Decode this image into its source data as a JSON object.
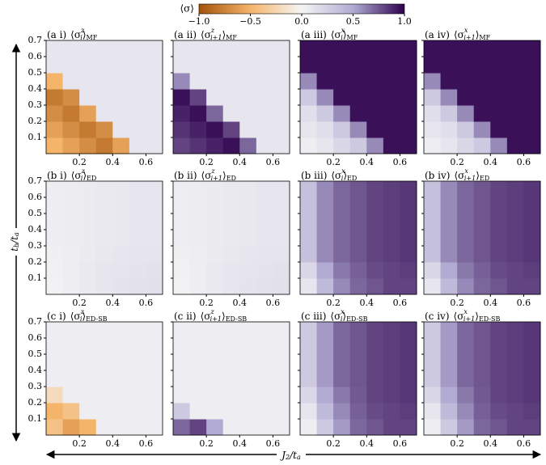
{
  "chart_data": {
    "type": "heatmap",
    "colorbar": {
      "label": "⟨σ⟩",
      "lim": [
        -1,
        1
      ],
      "ticks": [
        {
          "value": -1,
          "label": "−1.0"
        },
        {
          "value": -0.5,
          "label": "−0.5"
        },
        {
          "value": 0,
          "label": "0.0"
        },
        {
          "value": 0.5,
          "label": "0.5"
        },
        {
          "value": 1,
          "label": "1.0"
        }
      ],
      "colors": [
        "#a4520a",
        "#f4b56a",
        "#f5f5f5",
        "#b1abd3",
        "#2d004b"
      ]
    },
    "xlabel": [
      "J",
      "2",
      "/t",
      "a"
    ],
    "ylabel": [
      "t",
      "b",
      "/t",
      "a"
    ],
    "xlim": [
      0,
      0.7
    ],
    "ylim": [
      0,
      0.7
    ],
    "xticks": [
      0.2,
      0.4,
      0.6
    ],
    "yticks": [
      0.1,
      0.2,
      0.3,
      0.4,
      0.5,
      0.6,
      0.7
    ],
    "x": [
      0.05,
      0.15,
      0.25,
      0.35,
      0.45,
      0.55,
      0.65
    ],
    "y": [
      0.05,
      0.15,
      0.25,
      0.35,
      0.45,
      0.55,
      0.65
    ],
    "panels": [
      {
        "label": "(a i)",
        "sub": "i",
        "sup": "z",
        "ens": "MF",
        "z": [
          [
            -0.5,
            -0.6,
            -0.7,
            -0.8,
            -0.6,
            0.1,
            0.1
          ],
          [
            -0.6,
            -0.7,
            -0.8,
            -0.7,
            0.1,
            0.1,
            0.1
          ],
          [
            -0.7,
            -0.8,
            -0.6,
            0.1,
            0.1,
            0.1,
            0.1
          ],
          [
            -0.8,
            -0.7,
            0.1,
            0.1,
            0.1,
            0.1,
            0.1
          ],
          [
            -0.5,
            0.1,
            0.1,
            0.1,
            0.1,
            0.1,
            0.1
          ],
          [
            0.1,
            0.1,
            0.1,
            0.1,
            0.1,
            0.1,
            0.1
          ],
          [
            0.1,
            0.1,
            0.1,
            0.1,
            0.1,
            0.1,
            0.1
          ]
        ]
      },
      {
        "label": "(a ii)",
        "sub": "i+1",
        "sup": "z",
        "ens": "MF",
        "z": [
          [
            0.8,
            0.85,
            0.9,
            0.95,
            0.7,
            0.1,
            0.1
          ],
          [
            0.85,
            0.9,
            0.95,
            0.8,
            0.1,
            0.1,
            0.1
          ],
          [
            0.9,
            0.95,
            0.7,
            0.1,
            0.1,
            0.1,
            0.1
          ],
          [
            0.95,
            0.8,
            0.1,
            0.1,
            0.1,
            0.1,
            0.1
          ],
          [
            0.6,
            0.1,
            0.1,
            0.1,
            0.1,
            0.1,
            0.1
          ],
          [
            0.1,
            0.1,
            0.1,
            0.1,
            0.1,
            0.1,
            0.1
          ],
          [
            0.1,
            0.1,
            0.1,
            0.1,
            0.1,
            0.1,
            0.1
          ]
        ]
      },
      {
        "label": "(a iii)",
        "sub": "i",
        "sup": "x",
        "ens": "MF",
        "z": [
          [
            0.05,
            0.1,
            0.2,
            0.3,
            0.6,
            0.95,
            0.95
          ],
          [
            0.1,
            0.15,
            0.3,
            0.6,
            0.95,
            0.95,
            0.95
          ],
          [
            0.15,
            0.3,
            0.6,
            0.95,
            0.95,
            0.95,
            0.95
          ],
          [
            0.3,
            0.6,
            0.95,
            0.95,
            0.95,
            0.95,
            0.95
          ],
          [
            0.6,
            0.95,
            0.95,
            0.95,
            0.95,
            0.95,
            0.95
          ],
          [
            0.95,
            0.95,
            0.95,
            0.95,
            0.95,
            0.95,
            0.95
          ],
          [
            0.95,
            0.95,
            0.95,
            0.95,
            0.95,
            0.95,
            0.95
          ]
        ]
      },
      {
        "label": "(a iv)",
        "sub": "i+1",
        "sup": "x",
        "ens": "MF",
        "z": [
          [
            0.05,
            0.1,
            0.2,
            0.3,
            0.6,
            0.95,
            0.95
          ],
          [
            0.1,
            0.15,
            0.3,
            0.6,
            0.95,
            0.95,
            0.95
          ],
          [
            0.15,
            0.3,
            0.6,
            0.95,
            0.95,
            0.95,
            0.95
          ],
          [
            0.3,
            0.6,
            0.95,
            0.95,
            0.95,
            0.95,
            0.95
          ],
          [
            0.6,
            0.95,
            0.95,
            0.95,
            0.95,
            0.95,
            0.95
          ],
          [
            0.95,
            0.95,
            0.95,
            0.95,
            0.95,
            0.95,
            0.95
          ],
          [
            0.95,
            0.95,
            0.95,
            0.95,
            0.95,
            0.95,
            0.95
          ]
        ]
      },
      {
        "label": "(b i)",
        "sub": "i",
        "sup": "z",
        "ens": "ED",
        "z": [
          [
            0.02,
            0.05,
            0.08,
            0.1,
            0.12,
            0.13,
            0.14
          ],
          [
            0.03,
            0.05,
            0.08,
            0.1,
            0.11,
            0.12,
            0.13
          ],
          [
            0.04,
            0.05,
            0.07,
            0.09,
            0.1,
            0.11,
            0.11
          ],
          [
            0.05,
            0.06,
            0.07,
            0.08,
            0.09,
            0.1,
            0.1
          ],
          [
            0.05,
            0.06,
            0.07,
            0.08,
            0.09,
            0.1,
            0.1
          ],
          [
            0.05,
            0.06,
            0.07,
            0.08,
            0.09,
            0.1,
            0.1
          ],
          [
            0.05,
            0.06,
            0.07,
            0.08,
            0.09,
            0.1,
            0.1
          ]
        ]
      },
      {
        "label": "(b ii)",
        "sub": "i+1",
        "sup": "z",
        "ens": "ED",
        "z": [
          [
            0.02,
            0.05,
            0.08,
            0.1,
            0.12,
            0.13,
            0.14
          ],
          [
            0.03,
            0.05,
            0.08,
            0.1,
            0.11,
            0.12,
            0.13
          ],
          [
            0.04,
            0.05,
            0.07,
            0.09,
            0.1,
            0.11,
            0.11
          ],
          [
            0.05,
            0.06,
            0.07,
            0.08,
            0.09,
            0.1,
            0.1
          ],
          [
            0.05,
            0.06,
            0.07,
            0.08,
            0.09,
            0.1,
            0.1
          ],
          [
            0.05,
            0.06,
            0.07,
            0.08,
            0.09,
            0.1,
            0.1
          ],
          [
            0.05,
            0.06,
            0.07,
            0.08,
            0.09,
            0.1,
            0.1
          ]
        ]
      },
      {
        "label": "(b iii)",
        "sub": "i",
        "sup": "x",
        "ens": "ED",
        "z": [
          [
            0.1,
            0.4,
            0.6,
            0.7,
            0.75,
            0.8,
            0.8
          ],
          [
            0.2,
            0.5,
            0.65,
            0.72,
            0.78,
            0.8,
            0.82
          ],
          [
            0.35,
            0.6,
            0.7,
            0.75,
            0.8,
            0.82,
            0.84
          ],
          [
            0.35,
            0.6,
            0.7,
            0.75,
            0.8,
            0.82,
            0.84
          ],
          [
            0.35,
            0.6,
            0.7,
            0.75,
            0.8,
            0.82,
            0.84
          ],
          [
            0.35,
            0.6,
            0.7,
            0.75,
            0.8,
            0.82,
            0.84
          ],
          [
            0.35,
            0.6,
            0.7,
            0.75,
            0.8,
            0.82,
            0.84
          ]
        ]
      },
      {
        "label": "(b iv)",
        "sub": "i+1",
        "sup": "x",
        "ens": "ED",
        "z": [
          [
            0.1,
            0.4,
            0.6,
            0.7,
            0.75,
            0.8,
            0.8
          ],
          [
            0.2,
            0.5,
            0.65,
            0.72,
            0.78,
            0.8,
            0.82
          ],
          [
            0.35,
            0.6,
            0.7,
            0.75,
            0.8,
            0.82,
            0.84
          ],
          [
            0.35,
            0.6,
            0.7,
            0.75,
            0.8,
            0.82,
            0.84
          ],
          [
            0.35,
            0.6,
            0.7,
            0.75,
            0.8,
            0.82,
            0.84
          ],
          [
            0.35,
            0.6,
            0.7,
            0.75,
            0.8,
            0.82,
            0.84
          ],
          [
            0.35,
            0.6,
            0.7,
            0.75,
            0.8,
            0.82,
            0.84
          ]
        ]
      },
      {
        "label": "(c i)",
        "sub": "i",
        "sup": "z",
        "ens": "ED-SB",
        "z": [
          [
            -0.4,
            -0.6,
            -0.5,
            0.05,
            0.05,
            0.05,
            0.05
          ],
          [
            -0.5,
            -0.4,
            0.05,
            0.05,
            0.05,
            0.05,
            0.05
          ],
          [
            -0.2,
            0.05,
            0.05,
            0.05,
            0.05,
            0.05,
            0.05
          ],
          [
            0.05,
            0.05,
            0.05,
            0.05,
            0.05,
            0.05,
            0.05
          ],
          [
            0.05,
            0.05,
            0.05,
            0.05,
            0.05,
            0.05,
            0.05
          ],
          [
            0.05,
            0.05,
            0.05,
            0.05,
            0.05,
            0.05,
            0.05
          ],
          [
            0.05,
            0.05,
            0.05,
            0.05,
            0.05,
            0.05,
            0.05
          ]
        ]
      },
      {
        "label": "(c ii)",
        "sub": "i+1",
        "sup": "z",
        "ens": "ED-SB",
        "z": [
          [
            0.7,
            0.8,
            0.5,
            0.05,
            0.05,
            0.05,
            0.05
          ],
          [
            0.3,
            0.05,
            0.05,
            0.05,
            0.05,
            0.05,
            0.05
          ],
          [
            0.05,
            0.05,
            0.05,
            0.05,
            0.05,
            0.05,
            0.05
          ],
          [
            0.05,
            0.05,
            0.05,
            0.05,
            0.05,
            0.05,
            0.05
          ],
          [
            0.05,
            0.05,
            0.05,
            0.05,
            0.05,
            0.05,
            0.05
          ],
          [
            0.05,
            0.05,
            0.05,
            0.05,
            0.05,
            0.05,
            0.05
          ],
          [
            0.05,
            0.05,
            0.05,
            0.05,
            0.05,
            0.05,
            0.05
          ]
        ]
      },
      {
        "label": "(c iii)",
        "sub": "i",
        "sup": "x",
        "ens": "ED-SB",
        "z": [
          [
            0.05,
            0.3,
            0.55,
            0.7,
            0.75,
            0.8,
            0.8
          ],
          [
            0.1,
            0.4,
            0.6,
            0.72,
            0.78,
            0.8,
            0.82
          ],
          [
            0.2,
            0.5,
            0.65,
            0.74,
            0.8,
            0.82,
            0.84
          ],
          [
            0.3,
            0.55,
            0.7,
            0.75,
            0.8,
            0.82,
            0.84
          ],
          [
            0.3,
            0.55,
            0.7,
            0.75,
            0.8,
            0.82,
            0.84
          ],
          [
            0.3,
            0.55,
            0.7,
            0.75,
            0.8,
            0.82,
            0.84
          ],
          [
            0.3,
            0.55,
            0.7,
            0.75,
            0.8,
            0.82,
            0.84
          ]
        ]
      },
      {
        "label": "(c iv)",
        "sub": "i+1",
        "sup": "x",
        "ens": "ED-SB",
        "z": [
          [
            0.05,
            0.3,
            0.55,
            0.7,
            0.75,
            0.8,
            0.8
          ],
          [
            0.1,
            0.4,
            0.6,
            0.72,
            0.78,
            0.8,
            0.82
          ],
          [
            0.2,
            0.5,
            0.65,
            0.74,
            0.8,
            0.82,
            0.84
          ],
          [
            0.3,
            0.55,
            0.7,
            0.75,
            0.8,
            0.82,
            0.84
          ],
          [
            0.3,
            0.55,
            0.7,
            0.75,
            0.8,
            0.82,
            0.84
          ],
          [
            0.3,
            0.55,
            0.7,
            0.75,
            0.8,
            0.82,
            0.84
          ],
          [
            0.3,
            0.55,
            0.7,
            0.75,
            0.8,
            0.82,
            0.84
          ]
        ]
      }
    ]
  }
}
